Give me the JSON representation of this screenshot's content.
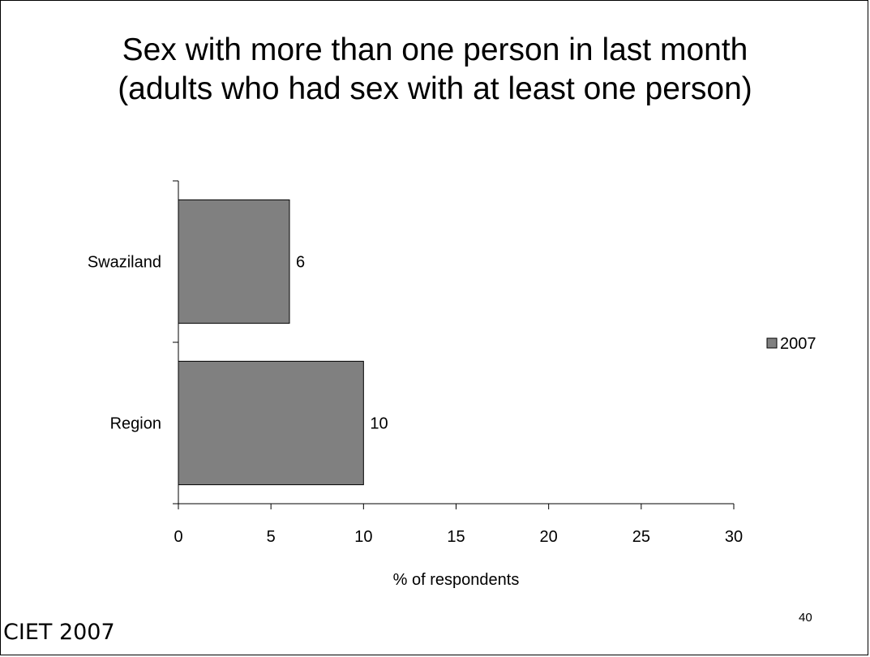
{
  "title_lines": [
    "Sex with more than one person in last month",
    "(adults who had sex with at least one person)"
  ],
  "chart_data": {
    "type": "bar",
    "orientation": "horizontal",
    "categories": [
      "Swaziland",
      "Region"
    ],
    "series": [
      {
        "name": "2007",
        "values": [
          6,
          10
        ],
        "color": "#808080"
      }
    ],
    "data_labels": [
      "6",
      "10"
    ],
    "xlabel": "% of respondents",
    "ylabel": "",
    "xlim": [
      0,
      30
    ],
    "xticks": [
      0,
      5,
      10,
      15,
      20,
      25,
      30
    ],
    "grid": false,
    "legend_position": "right"
  },
  "page_number": "40",
  "footer": "CIET 2007"
}
